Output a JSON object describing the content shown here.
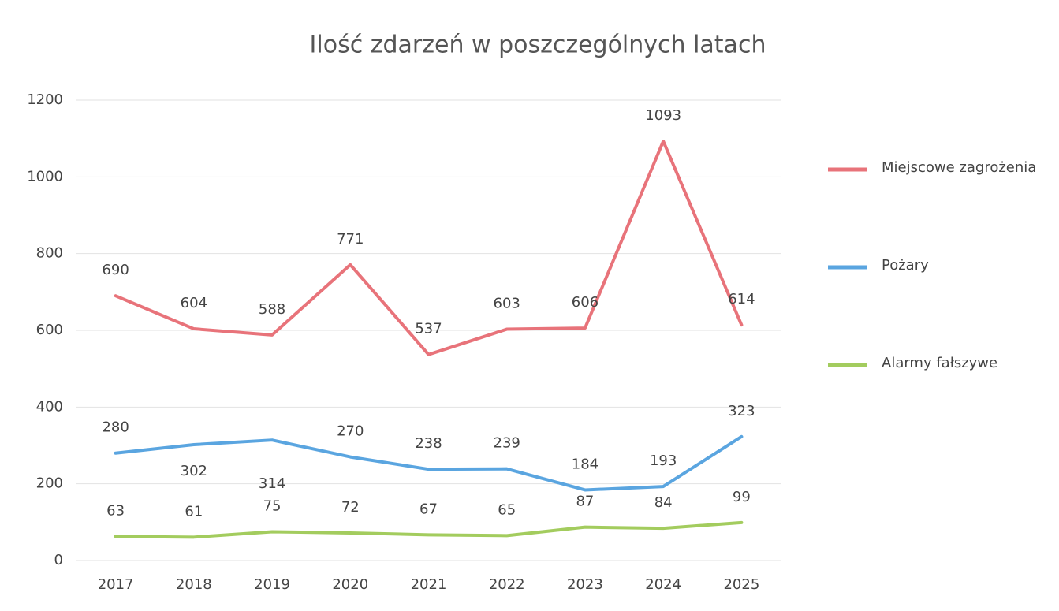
{
  "chart_data": {
    "type": "line",
    "title": "Ilość zdarzeń w poszczególnych latach",
    "categories": [
      "2017",
      "2018",
      "2019",
      "2020",
      "2021",
      "2022",
      "2023",
      "2024",
      "2025"
    ],
    "series": [
      {
        "name": "Miejscowe zagrożenia",
        "color": "#e8737a",
        "values": [
          690,
          604,
          588,
          771,
          537,
          603,
          606,
          1093,
          614
        ]
      },
      {
        "name": "Pożary",
        "color": "#5aa5e0",
        "values": [
          280,
          302,
          314,
          270,
          238,
          239,
          184,
          193,
          323
        ]
      },
      {
        "name": "Alarmy fałszywe",
        "color": "#a3cc5e",
        "values": [
          63,
          61,
          75,
          72,
          67,
          65,
          87,
          84,
          99
        ]
      }
    ],
    "ylim": [
      0,
      1200
    ],
    "yticks": [
      0,
      200,
      400,
      600,
      800,
      1000,
      1200
    ],
    "grid": true,
    "legend": "right"
  }
}
